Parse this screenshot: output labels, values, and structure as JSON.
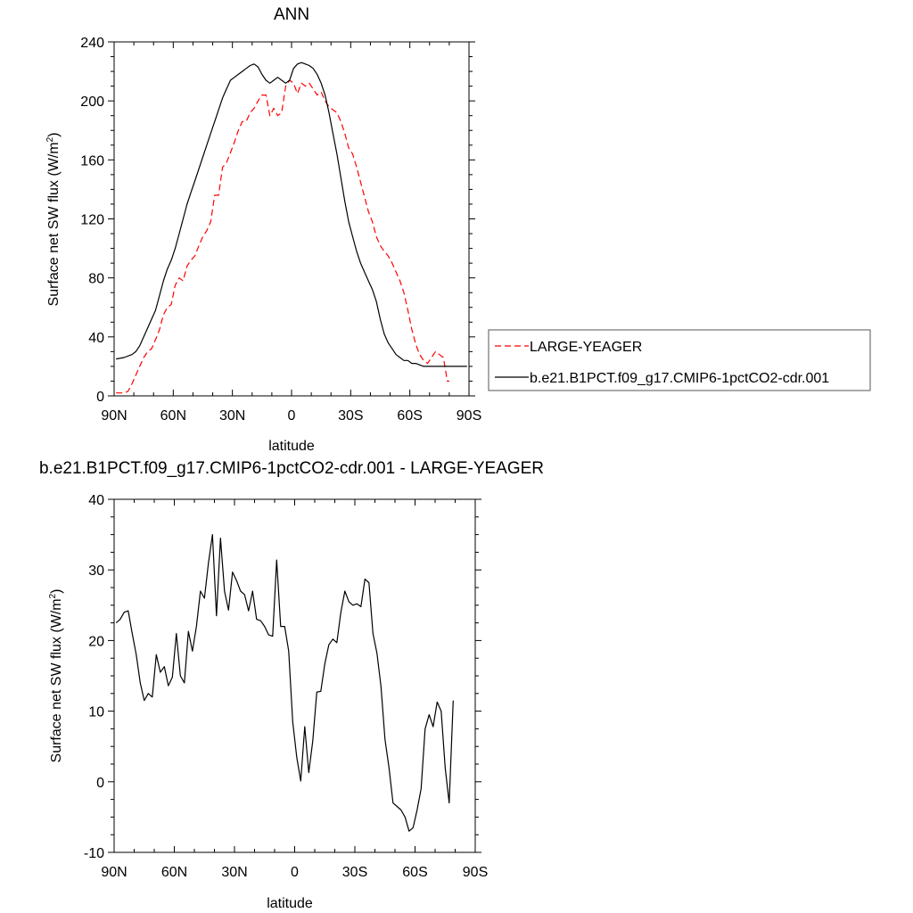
{
  "chart_data": [
    {
      "type": "line",
      "title": "ANN",
      "xlabel": "latitude",
      "ylabel": "Surface net SW flux (W/m",
      "ylabel_sup": "2",
      "ylabel_end": ")",
      "xlim": [
        90,
        -90
      ],
      "ylim": [
        0,
        240
      ],
      "xticks": [
        {
          "value": 90,
          "label": "90N"
        },
        {
          "value": 60,
          "label": "60N"
        },
        {
          "value": 30,
          "label": "30N"
        },
        {
          "value": 0,
          "label": "0"
        },
        {
          "value": -30,
          "label": "30S"
        },
        {
          "value": -60,
          "label": "60S"
        },
        {
          "value": -90,
          "label": "90S"
        }
      ],
      "yticks": [
        0,
        40,
        80,
        120,
        160,
        200,
        240
      ],
      "legend": "right",
      "series": [
        {
          "name": "LARGE-YEAGER",
          "color": "#ff0000",
          "style": "dashed",
          "x": [
            89,
            85,
            83,
            81,
            79,
            77,
            75,
            73,
            71,
            69,
            67,
            65,
            63,
            61,
            59,
            57,
            55,
            53,
            51,
            49,
            47,
            45,
            43,
            41,
            39,
            37,
            35,
            33,
            31,
            29,
            27,
            25,
            23,
            21,
            19,
            17,
            15,
            13,
            11,
            9,
            7,
            5,
            3,
            1,
            -1,
            -3,
            -5,
            -7,
            -9,
            -11,
            -13,
            -15,
            -17,
            -19,
            -21,
            -23,
            -25,
            -27,
            -29,
            -31,
            -33,
            -35,
            -37,
            -39,
            -41,
            -43,
            -45,
            -47,
            -49,
            -51,
            -53,
            -55,
            -57,
            -59,
            -61,
            -63,
            -65,
            -67,
            -69,
            -71,
            -73,
            -75,
            -77,
            -79,
            -80
          ],
          "y": [
            2,
            2,
            3,
            8,
            14,
            20,
            26,
            30,
            32,
            38,
            45,
            55,
            60,
            62,
            75,
            80,
            78,
            88,
            92,
            95,
            102,
            108,
            112,
            118,
            136,
            136,
            155,
            158,
            165,
            172,
            180,
            186,
            186,
            192,
            195,
            200,
            204,
            204,
            190,
            195,
            190,
            192,
            210,
            214,
            212,
            205,
            212,
            210,
            212,
            208,
            204,
            206,
            200,
            196,
            194,
            192,
            186,
            178,
            168,
            164,
            155,
            145,
            135,
            125,
            118,
            108,
            102,
            98,
            95,
            90,
            84,
            78,
            70,
            58,
            45,
            35,
            28,
            24,
            22,
            26,
            30,
            28,
            26,
            10,
            10
          ]
        },
        {
          "name": "b.e21.B1PCT.f09_g17.CMIP6-1pctCO2-cdr.001",
          "color": "#000000",
          "style": "solid",
          "x": [
            89,
            85,
            81,
            79,
            77,
            75,
            73,
            71,
            69,
            67,
            65,
            63,
            61,
            59,
            57,
            55,
            53,
            51,
            49,
            47,
            45,
            43,
            41,
            39,
            37,
            35,
            33,
            31,
            29,
            27,
            25,
            23,
            21,
            19,
            17,
            15,
            13,
            11,
            9,
            7,
            5,
            3,
            1,
            -1,
            -3,
            -5,
            -7,
            -9,
            -11,
            -13,
            -15,
            -17,
            -19,
            -21,
            -23,
            -25,
            -27,
            -29,
            -31,
            -33,
            -35,
            -37,
            -39,
            -41,
            -43,
            -45,
            -47,
            -49,
            -51,
            -53,
            -55,
            -57,
            -59,
            -61,
            -63,
            -65,
            -67,
            -69,
            -71,
            -73,
            -75,
            -77,
            -79,
            -81,
            -83,
            -85,
            -87,
            -89
          ],
          "y": [
            25,
            26,
            28,
            30,
            34,
            40,
            46,
            52,
            58,
            68,
            78,
            86,
            92,
            100,
            110,
            120,
            130,
            138,
            146,
            154,
            162,
            170,
            178,
            186,
            194,
            202,
            208,
            214,
            216,
            218,
            220,
            222,
            224,
            225,
            223,
            218,
            214,
            212,
            214,
            216,
            214,
            212,
            214,
            222,
            225,
            226,
            225,
            224,
            222,
            218,
            212,
            204,
            192,
            178,
            164,
            148,
            132,
            118,
            108,
            98,
            90,
            84,
            78,
            72,
            64,
            52,
            42,
            36,
            32,
            28,
            26,
            24,
            24,
            22,
            22,
            21,
            20,
            20,
            20,
            20,
            20,
            20,
            20,
            20,
            20,
            20,
            20,
            20
          ]
        }
      ]
    },
    {
      "type": "line",
      "title": "b.e21.B1PCT.f09_g17.CMIP6-1pctCO2-cdr.001 - LARGE-YEAGER",
      "xlabel": "latitude",
      "ylabel": "Surface net SW flux (W/m",
      "ylabel_sup": "2",
      "ylabel_end": ")",
      "xlim": [
        90,
        -90
      ],
      "ylim": [
        -10,
        40
      ],
      "xticks": [
        {
          "value": 90,
          "label": "90N"
        },
        {
          "value": 60,
          "label": "60N"
        },
        {
          "value": 30,
          "label": "30N"
        },
        {
          "value": 0,
          "label": "0"
        },
        {
          "value": -30,
          "label": "30S"
        },
        {
          "value": -60,
          "label": "60S"
        },
        {
          "value": -90,
          "label": "90S"
        }
      ],
      "yticks": [
        -10,
        0,
        10,
        20,
        30,
        40
      ],
      "series": [
        {
          "color": "#000000",
          "style": "solid",
          "x": [
            89,
            87,
            85,
            83,
            81,
            79,
            77,
            75,
            73,
            71,
            69,
            67,
            65,
            63,
            61,
            59,
            57,
            55,
            53,
            51,
            49,
            47,
            45,
            43,
            41,
            39,
            37,
            35,
            33,
            31,
            29,
            27,
            25,
            23,
            21,
            19,
            17,
            15,
            13,
            11,
            9,
            7,
            5,
            3,
            1,
            -1,
            -3,
            -5,
            -7,
            -9,
            -11,
            -13,
            -15,
            -17,
            -19,
            -21,
            -23,
            -25,
            -27,
            -29,
            -31,
            -33,
            -35,
            -37,
            -39,
            -41,
            -43,
            -45,
            -47,
            -49,
            -51,
            -53,
            -55,
            -57,
            -59,
            -61,
            -63,
            -65,
            -67,
            -69,
            -71,
            -73,
            -75,
            -77,
            -79
          ],
          "y": [
            22.5,
            23,
            24,
            24.2,
            21,
            18,
            14,
            11.5,
            12.5,
            12,
            18,
            15.5,
            16.3,
            13.6,
            14.8,
            21,
            15,
            14,
            21.3,
            18.5,
            22,
            27,
            26,
            31,
            35,
            23.5,
            34.5,
            27,
            24.3,
            29.7,
            28.5,
            27,
            26.5,
            24.2,
            27,
            23,
            22.8,
            22,
            20.8,
            20.6,
            31.4,
            22,
            22,
            18.5,
            8.5,
            3.5,
            0.1,
            7.8,
            1.3,
            5.8,
            12.7,
            12.8,
            16.7,
            19.4,
            20.2,
            19.7,
            24,
            27,
            25.5,
            25,
            25.2,
            24.8,
            28.7,
            28.2,
            21,
            18.2,
            13.5,
            6,
            2,
            -3,
            -3.5,
            -4,
            -5,
            -7,
            -6.5,
            -4,
            -1,
            7.5,
            9.5,
            7.8,
            11.3,
            10,
            2,
            -3,
            11.5
          ]
        }
      ]
    }
  ]
}
